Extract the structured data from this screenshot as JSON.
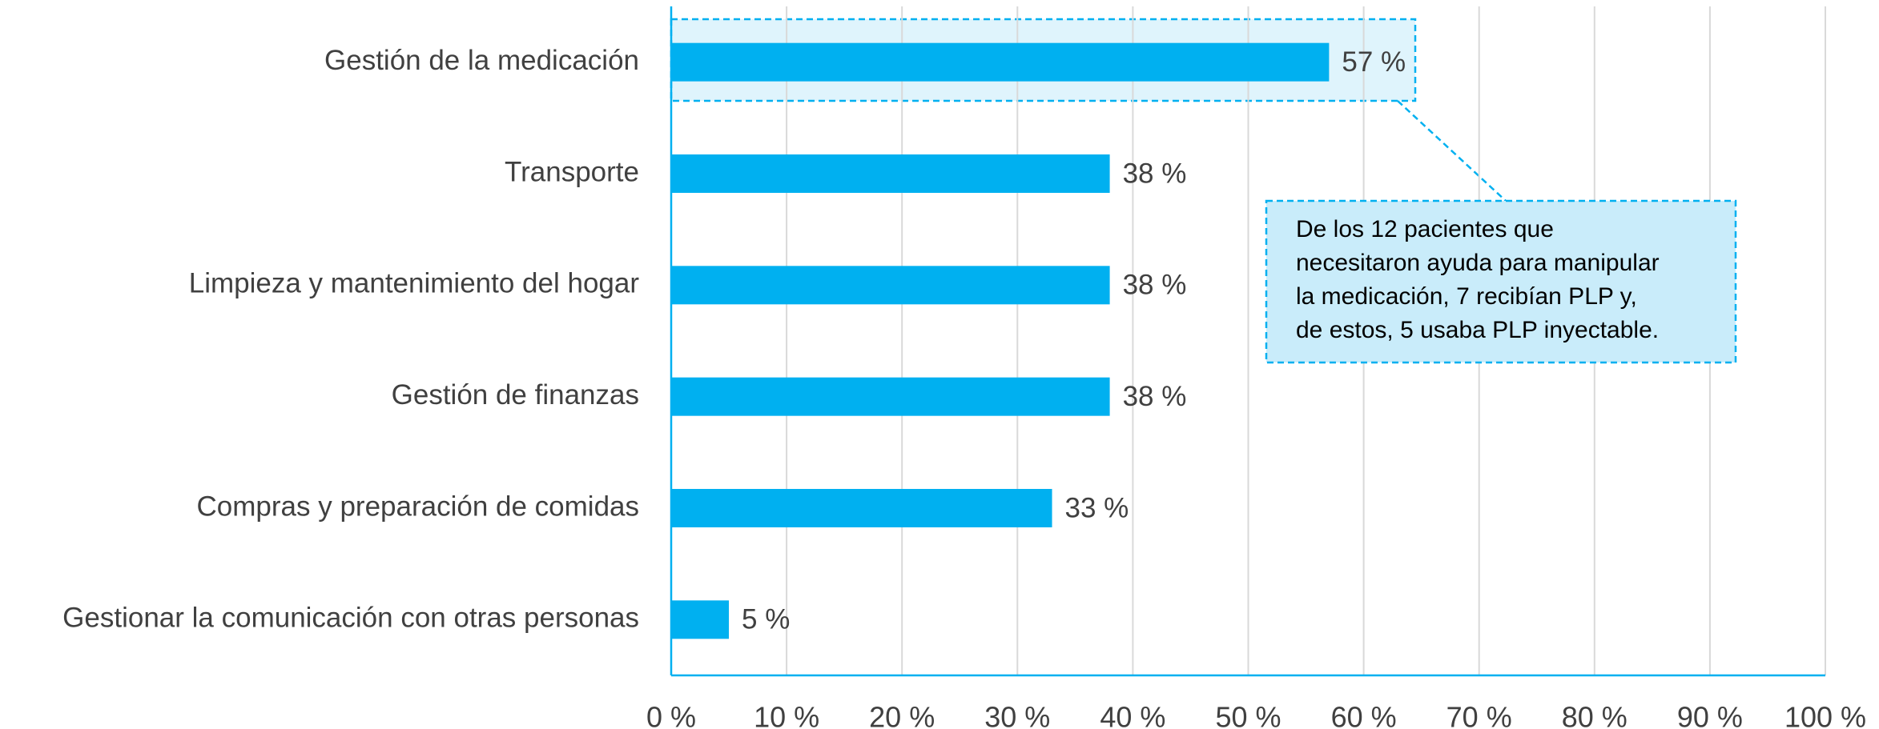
{
  "chart_data": {
    "type": "bar",
    "orientation": "horizontal",
    "categories": [
      "Gestión de la medicación",
      "Transporte",
      "Limpieza y mantenimiento del hogar",
      "Gestión de finanzas",
      "Compras y preparación de comidas",
      "Gestionar la comunicación con otras personas"
    ],
    "values": [
      57,
      38,
      38,
      38,
      33,
      5
    ],
    "value_labels": [
      "57 %",
      "38 %",
      "38 %",
      "38 %",
      "33 %",
      "5 %"
    ],
    "color": "#00b0f0",
    "xlim": [
      0,
      100
    ],
    "xticks": [
      {
        "value": 0,
        "label": "0 %"
      },
      {
        "value": 10,
        "label": "10 %"
      },
      {
        "value": 20,
        "label": "20 %"
      },
      {
        "value": 30,
        "label": "30 %"
      },
      {
        "value": 40,
        "label": "40 %"
      },
      {
        "value": 50,
        "label": "50 %"
      },
      {
        "value": 60,
        "label": "60 %"
      },
      {
        "value": 70,
        "label": "70 %"
      },
      {
        "value": 80,
        "label": "80 %"
      },
      {
        "value": 90,
        "label": "90 %"
      },
      {
        "value": 100,
        "label": "100 %"
      }
    ],
    "grid": true,
    "annotation": [
      "De los 12 pacientes que",
      "necesitaron ayuda para manipular",
      "la medicación, 7 recibían PLP y,",
      "de estos, 5 usaba PLP inyectable."
    ]
  }
}
